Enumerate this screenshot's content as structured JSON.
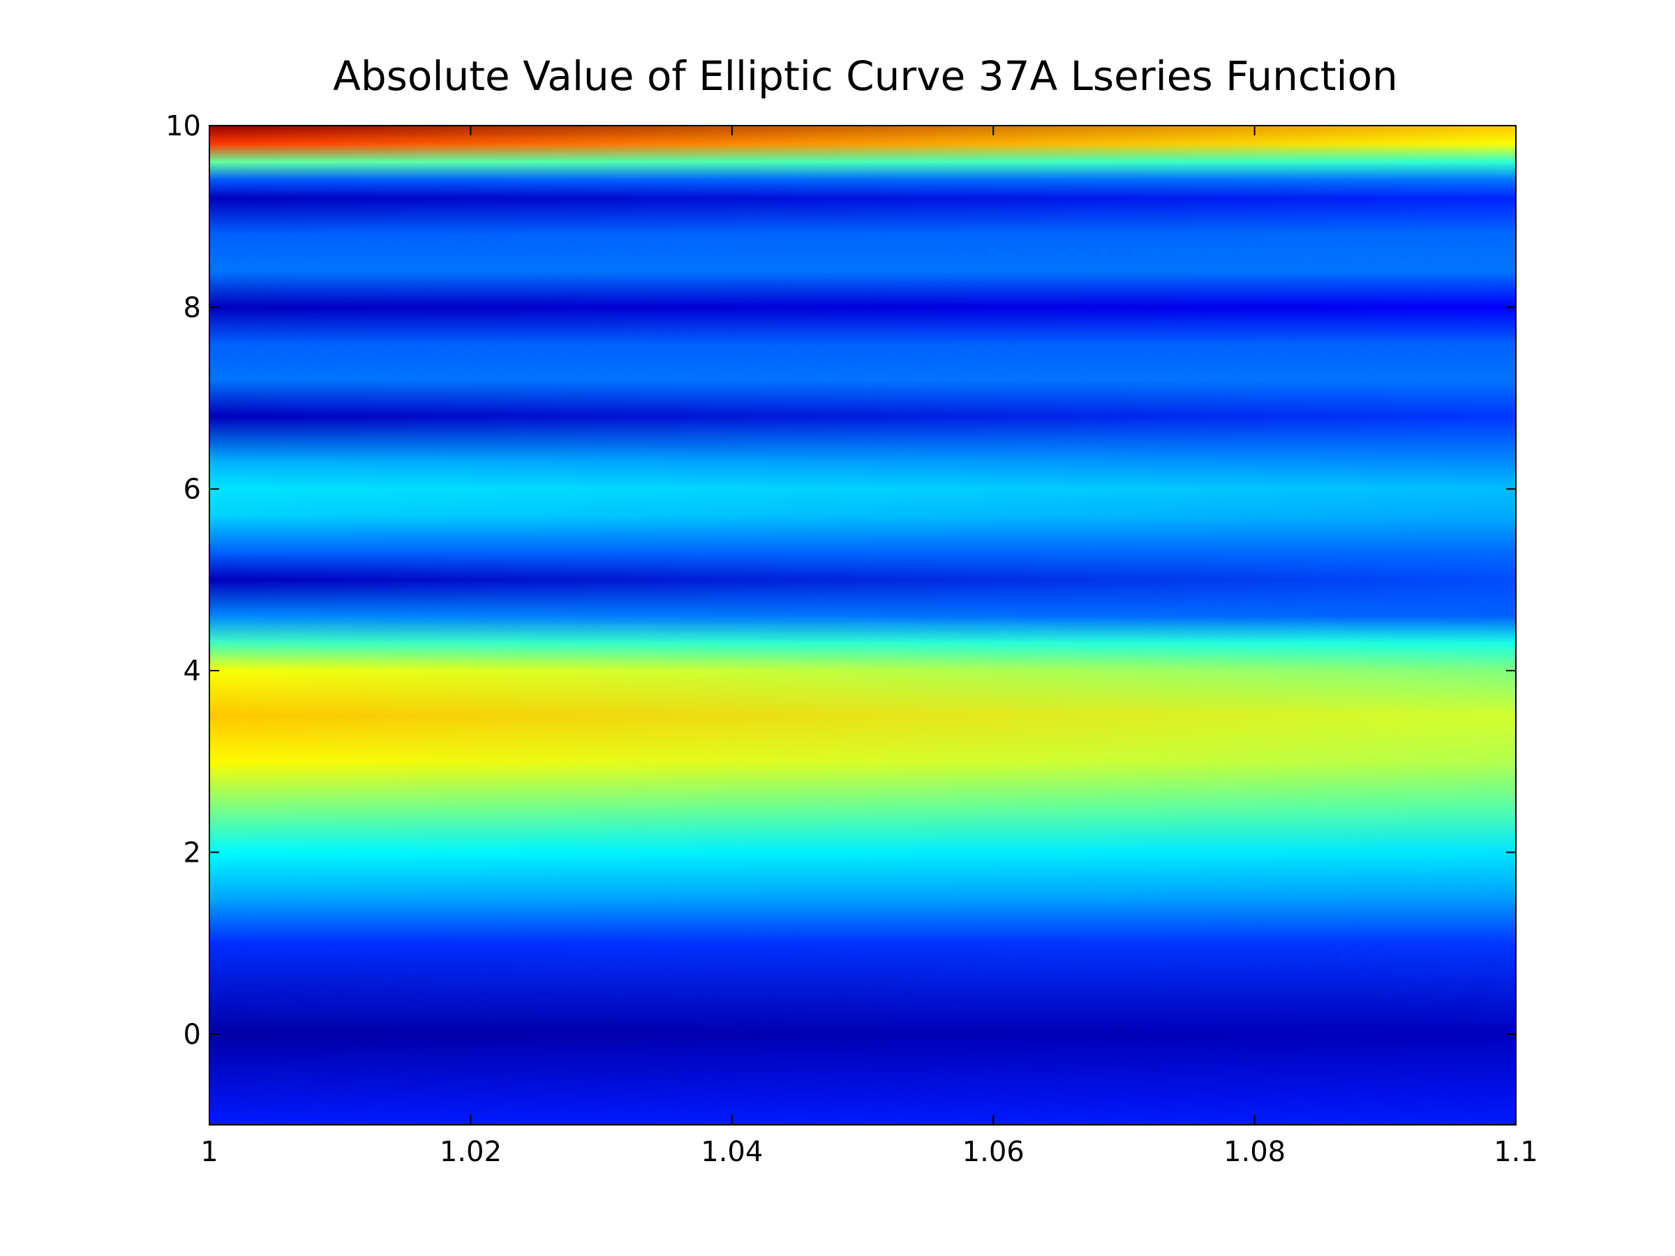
{
  "chart_data": {
    "type": "heatmap",
    "title": "Absolute Value of Elliptic Curve 37A Lseries Function",
    "xlabel": "",
    "ylabel": "",
    "xlim": [
      1,
      1.1
    ],
    "ylim": [
      -1,
      10
    ],
    "x_ticks": [
      1,
      1.02,
      1.04,
      1.06,
      1.08,
      1.1
    ],
    "x_tick_labels": [
      "1",
      "1.02",
      "1.04",
      "1.06",
      "1.08",
      "1.1"
    ],
    "y_ticks": [
      0,
      2,
      4,
      6,
      8,
      10
    ],
    "y_tick_labels": [
      "0",
      "2",
      "4",
      "6",
      "8",
      "10"
    ],
    "colormap": "jet",
    "grid": false,
    "x": [
      1.0,
      1.1
    ],
    "y": [
      -1.0,
      0.0,
      1.0,
      1.5,
      2.0,
      2.5,
      3.0,
      3.5,
      4.0,
      4.3,
      4.6,
      5.0,
      5.3,
      5.7,
      6.0,
      6.3,
      6.8,
      7.2,
      7.6,
      8.0,
      8.4,
      8.8,
      9.2,
      9.4,
      9.6,
      9.8,
      10.0
    ],
    "values": [
      [
        0.15,
        0.15
      ],
      [
        0.04,
        0.06
      ],
      [
        0.17,
        0.18
      ],
      [
        0.29,
        0.28
      ],
      [
        0.37,
        0.35
      ],
      [
        0.5,
        0.46
      ],
      [
        0.63,
        0.55
      ],
      [
        0.68,
        0.58
      ],
      [
        0.62,
        0.5
      ],
      [
        0.44,
        0.4
      ],
      [
        0.26,
        0.22
      ],
      [
        0.06,
        0.2
      ],
      [
        0.22,
        0.23
      ],
      [
        0.33,
        0.29
      ],
      [
        0.35,
        0.31
      ],
      [
        0.3,
        0.26
      ],
      [
        0.06,
        0.18
      ],
      [
        0.24,
        0.24
      ],
      [
        0.22,
        0.22
      ],
      [
        0.06,
        0.12
      ],
      [
        0.24,
        0.24
      ],
      [
        0.22,
        0.23
      ],
      [
        0.06,
        0.16
      ],
      [
        0.21,
        0.24
      ],
      [
        0.47,
        0.42
      ],
      [
        0.82,
        0.62
      ],
      [
        0.98,
        0.68
      ]
    ]
  }
}
